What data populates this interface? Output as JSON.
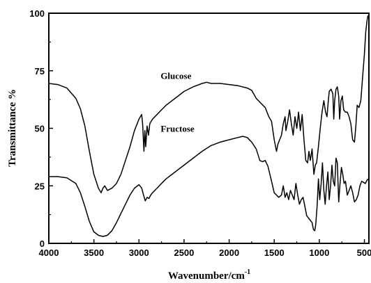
{
  "chart_data": {
    "type": "line",
    "xlabel": "Wavenumber/cm",
    "xlabel_superscript": "-1",
    "ylabel": "Transmittance %",
    "xlim": [
      4000,
      450
    ],
    "ylim": [
      0,
      100
    ],
    "x_reversed": true,
    "grid": false,
    "legend": "none",
    "x_ticks": [
      4000,
      3500,
      3000,
      2500,
      2000,
      1500,
      1000,
      500
    ],
    "y_ticks": [
      0,
      25,
      50,
      75,
      100
    ],
    "annotations": [
      {
        "text": "Glucose",
        "series": "Glucose"
      },
      {
        "text": "Fructose",
        "series": "Fructose"
      }
    ],
    "series": [
      {
        "name": "Glucose",
        "color": "#000000",
        "points": [
          [
            4000,
            69.5
          ],
          [
            3900,
            69
          ],
          [
            3800,
            67.5
          ],
          [
            3700,
            63
          ],
          [
            3650,
            58.5
          ],
          [
            3600,
            51
          ],
          [
            3550,
            40
          ],
          [
            3500,
            30
          ],
          [
            3450,
            24
          ],
          [
            3420,
            22
          ],
          [
            3400,
            24
          ],
          [
            3380,
            25
          ],
          [
            3350,
            23
          ],
          [
            3300,
            24
          ],
          [
            3250,
            26
          ],
          [
            3200,
            30
          ],
          [
            3150,
            36
          ],
          [
            3100,
            42
          ],
          [
            3050,
            49
          ],
          [
            3000,
            54
          ],
          [
            2970,
            56
          ],
          [
            2960,
            52
          ],
          [
            2945,
            40
          ],
          [
            2935,
            49
          ],
          [
            2925,
            42
          ],
          [
            2910,
            51
          ],
          [
            2895,
            47
          ],
          [
            2880,
            52
          ],
          [
            2850,
            54
          ],
          [
            2800,
            56
          ],
          [
            2750,
            58
          ],
          [
            2700,
            60
          ],
          [
            2600,
            63
          ],
          [
            2500,
            66
          ],
          [
            2400,
            68
          ],
          [
            2300,
            69.5
          ],
          [
            2250,
            70
          ],
          [
            2200,
            69.5
          ],
          [
            2100,
            69.5
          ],
          [
            2000,
            69
          ],
          [
            1900,
            68.5
          ],
          [
            1800,
            67.5
          ],
          [
            1750,
            66.5
          ],
          [
            1700,
            63
          ],
          [
            1650,
            61
          ],
          [
            1600,
            59
          ],
          [
            1560,
            55
          ],
          [
            1530,
            53
          ],
          [
            1500,
            45
          ],
          [
            1475,
            40
          ],
          [
            1460,
            43
          ],
          [
            1440,
            45
          ],
          [
            1420,
            47
          ],
          [
            1400,
            52
          ],
          [
            1380,
            55
          ],
          [
            1370,
            49
          ],
          [
            1350,
            53
          ],
          [
            1330,
            58
          ],
          [
            1310,
            52
          ],
          [
            1290,
            47
          ],
          [
            1270,
            55
          ],
          [
            1250,
            50
          ],
          [
            1230,
            57
          ],
          [
            1210,
            49
          ],
          [
            1190,
            56
          ],
          [
            1170,
            45
          ],
          [
            1150,
            36
          ],
          [
            1130,
            35
          ],
          [
            1115,
            40
          ],
          [
            1100,
            36
          ],
          [
            1080,
            41
          ],
          [
            1060,
            30
          ],
          [
            1045,
            34
          ],
          [
            1030,
            35
          ],
          [
            1010,
            42
          ],
          [
            990,
            50
          ],
          [
            970,
            57
          ],
          [
            950,
            62
          ],
          [
            930,
            57
          ],
          [
            915,
            55
          ],
          [
            900,
            62
          ],
          [
            890,
            66
          ],
          [
            870,
            67
          ],
          [
            850,
            65
          ],
          [
            840,
            54
          ],
          [
            830,
            62
          ],
          [
            815,
            67
          ],
          [
            800,
            68
          ],
          [
            785,
            64
          ],
          [
            775,
            54
          ],
          [
            760,
            62
          ],
          [
            745,
            64
          ],
          [
            730,
            58
          ],
          [
            710,
            57
          ],
          [
            690,
            57
          ],
          [
            670,
            55
          ],
          [
            650,
            52
          ],
          [
            630,
            45
          ],
          [
            610,
            44
          ],
          [
            595,
            51
          ],
          [
            580,
            60
          ],
          [
            560,
            59
          ],
          [
            540,
            62
          ],
          [
            520,
            72
          ],
          [
            500,
            82
          ],
          [
            485,
            92
          ],
          [
            470,
            97
          ],
          [
            460,
            99
          ]
        ]
      },
      {
        "name": "Fructose",
        "color": "#000000",
        "points": [
          [
            4000,
            29
          ],
          [
            3900,
            29
          ],
          [
            3800,
            28.5
          ],
          [
            3700,
            26
          ],
          [
            3650,
            22
          ],
          [
            3600,
            16
          ],
          [
            3550,
            9.5
          ],
          [
            3500,
            5
          ],
          [
            3450,
            3.5
          ],
          [
            3400,
            3
          ],
          [
            3350,
            3.5
          ],
          [
            3300,
            5.5
          ],
          [
            3250,
            9
          ],
          [
            3200,
            13
          ],
          [
            3150,
            17
          ],
          [
            3100,
            21
          ],
          [
            3050,
            24
          ],
          [
            3000,
            25.5
          ],
          [
            2970,
            24
          ],
          [
            2950,
            21
          ],
          [
            2930,
            18.5
          ],
          [
            2910,
            20
          ],
          [
            2890,
            19.5
          ],
          [
            2870,
            21
          ],
          [
            2850,
            22
          ],
          [
            2800,
            24
          ],
          [
            2750,
            26
          ],
          [
            2700,
            28
          ],
          [
            2600,
            31
          ],
          [
            2500,
            34
          ],
          [
            2400,
            37
          ],
          [
            2300,
            40
          ],
          [
            2200,
            42.5
          ],
          [
            2100,
            44
          ],
          [
            2000,
            45
          ],
          [
            1900,
            46
          ],
          [
            1850,
            46.5
          ],
          [
            1800,
            46
          ],
          [
            1750,
            44
          ],
          [
            1700,
            41
          ],
          [
            1660,
            36
          ],
          [
            1630,
            35.5
          ],
          [
            1600,
            36
          ],
          [
            1570,
            33.5
          ],
          [
            1530,
            27
          ],
          [
            1500,
            22
          ],
          [
            1475,
            21
          ],
          [
            1450,
            20
          ],
          [
            1420,
            21
          ],
          [
            1400,
            25
          ],
          [
            1380,
            20
          ],
          [
            1360,
            22
          ],
          [
            1340,
            19
          ],
          [
            1320,
            23
          ],
          [
            1300,
            21
          ],
          [
            1280,
            19
          ],
          [
            1260,
            26
          ],
          [
            1240,
            21
          ],
          [
            1220,
            17
          ],
          [
            1200,
            19
          ],
          [
            1180,
            20
          ],
          [
            1160,
            16
          ],
          [
            1140,
            12
          ],
          [
            1120,
            11
          ],
          [
            1100,
            10
          ],
          [
            1080,
            9
          ],
          [
            1065,
            6
          ],
          [
            1050,
            5.5
          ],
          [
            1040,
            8
          ],
          [
            1025,
            16
          ],
          [
            1010,
            28
          ],
          [
            995,
            19
          ],
          [
            980,
            26
          ],
          [
            965,
            35
          ],
          [
            950,
            23
          ],
          [
            935,
            17
          ],
          [
            920,
            25
          ],
          [
            905,
            31
          ],
          [
            890,
            19
          ],
          [
            875,
            25
          ],
          [
            860,
            34
          ],
          [
            845,
            27
          ],
          [
            830,
            25
          ],
          [
            815,
            37
          ],
          [
            800,
            35
          ],
          [
            785,
            18
          ],
          [
            770,
            26
          ],
          [
            755,
            33
          ],
          [
            740,
            30
          ],
          [
            725,
            26
          ],
          [
            710,
            27
          ],
          [
            690,
            21
          ],
          [
            670,
            23
          ],
          [
            650,
            25
          ],
          [
            630,
            22
          ],
          [
            610,
            18
          ],
          [
            590,
            19
          ],
          [
            570,
            21
          ],
          [
            550,
            25
          ],
          [
            530,
            27
          ],
          [
            510,
            26.5
          ],
          [
            490,
            26
          ],
          [
            470,
            27.5
          ],
          [
            455,
            28
          ]
        ]
      }
    ]
  }
}
